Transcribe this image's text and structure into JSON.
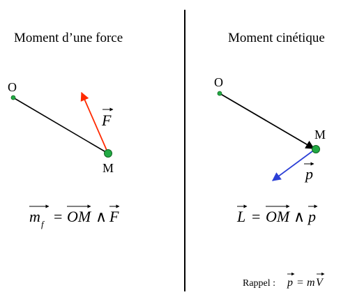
{
  "left": {
    "title": "Moment d’une force",
    "point_O": "O",
    "point_M": "M",
    "vector_label": "F",
    "equation": {
      "lhs": "m",
      "lhs_sub": "f",
      "eq": "=",
      "om": "OM",
      "wedge": "∧",
      "rhs": "F"
    }
  },
  "right": {
    "title": "Moment cinétique",
    "point_O": "O",
    "point_M": "M",
    "vector_label": "p",
    "equation": {
      "lhs": "L",
      "eq": "=",
      "om": "OM",
      "wedge": "∧",
      "rhs": "p"
    },
    "rappel": {
      "label": "Rappel :",
      "lhs": "p",
      "eq": "=",
      "rhs_m": "m",
      "rhs_v": "V"
    }
  },
  "colors": {
    "force_vector": "#ff2a00",
    "momentum_vector": "#2b3fd6",
    "point_fill": "#22aa44",
    "line": "#000000"
  }
}
